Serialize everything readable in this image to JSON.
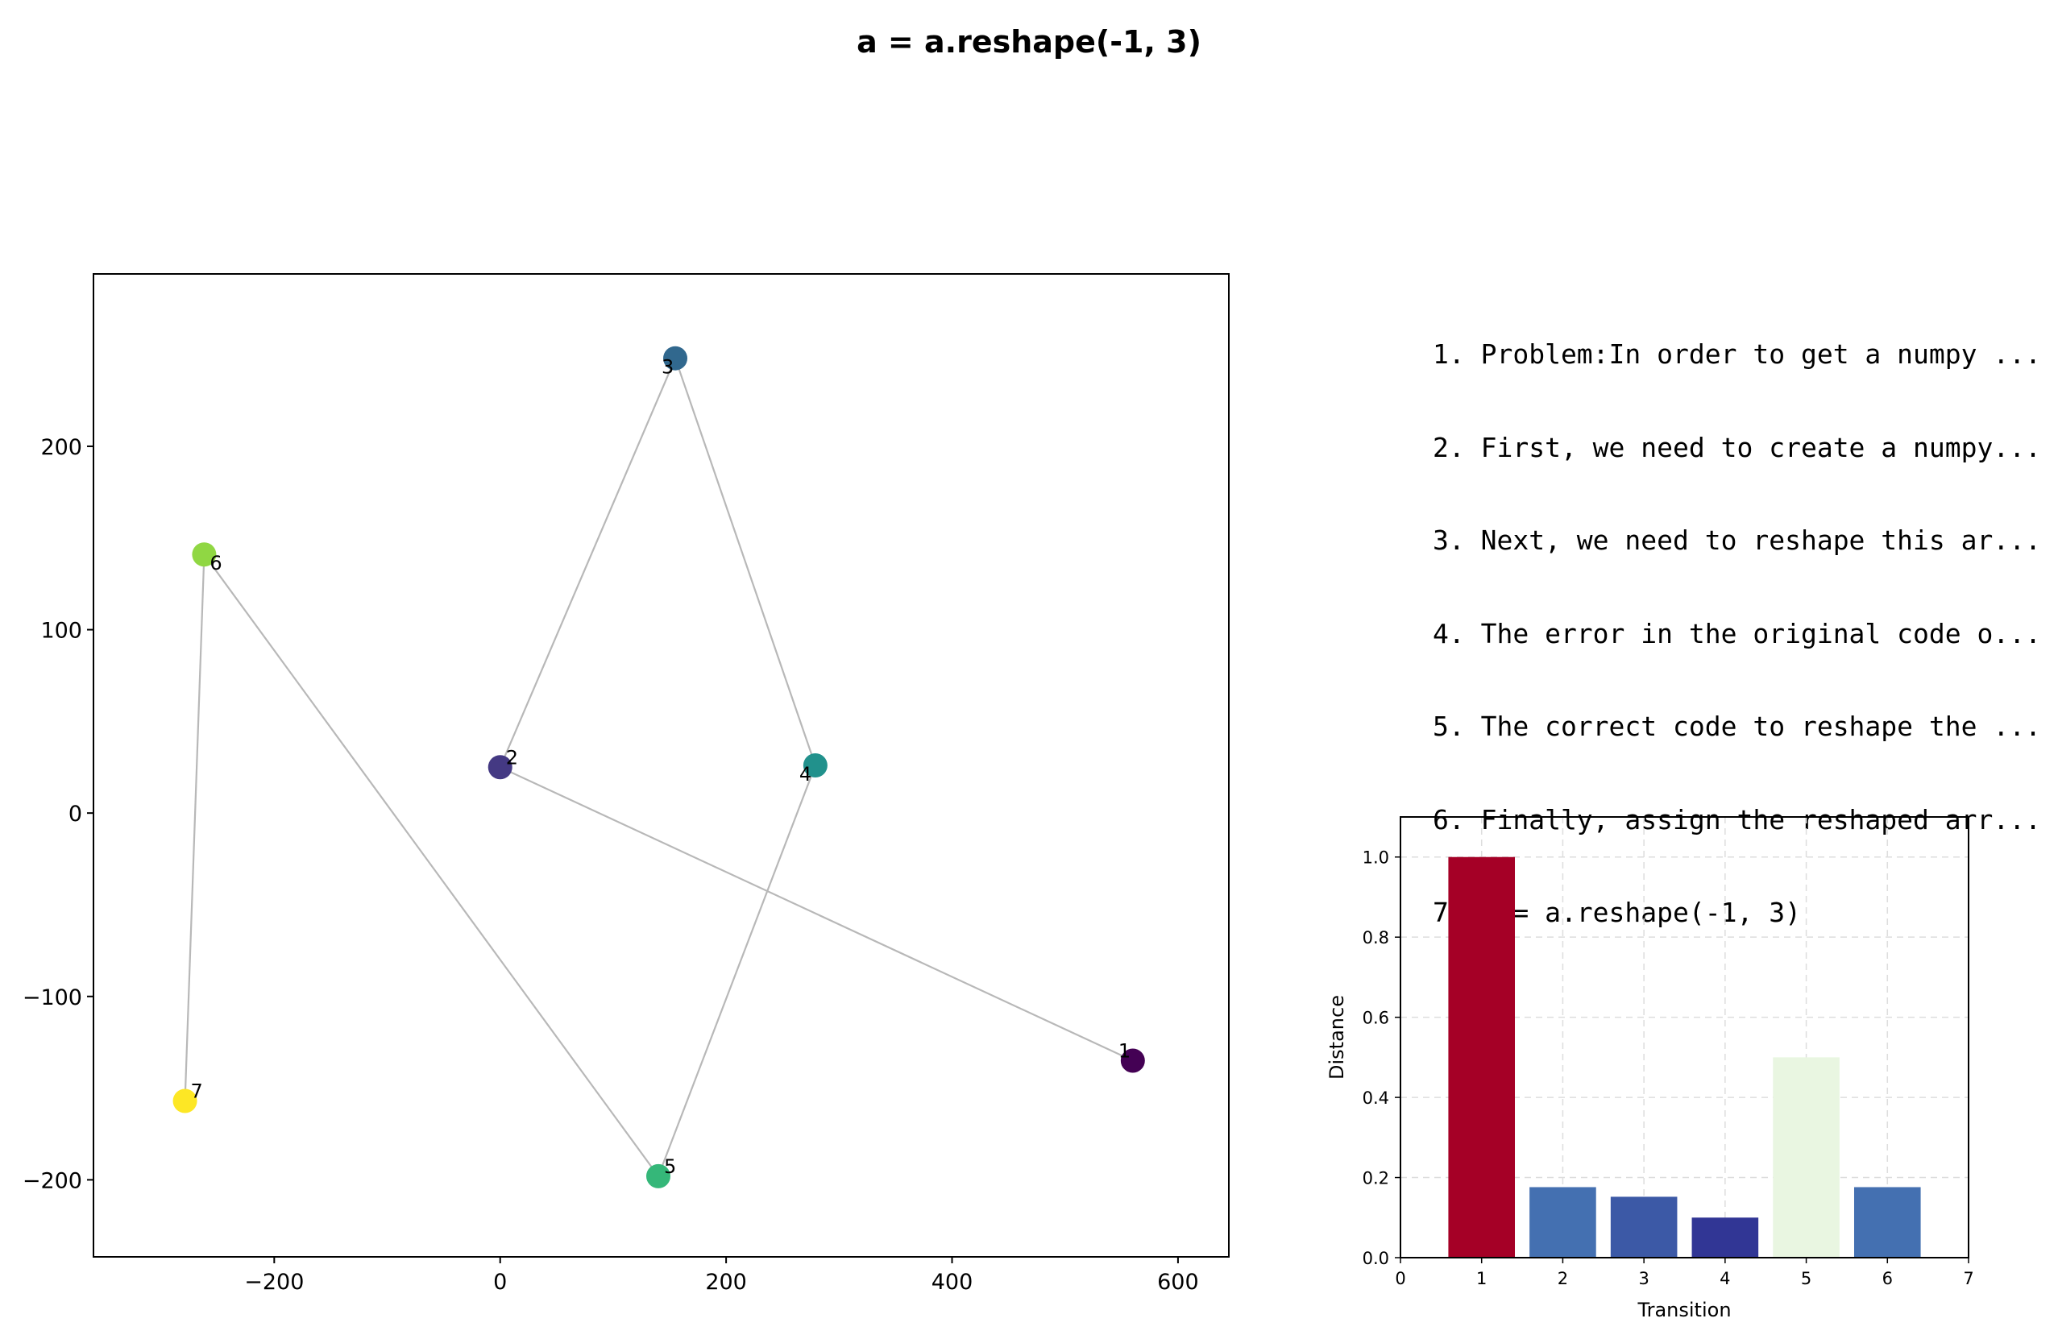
{
  "title": "a = a.reshape(-1, 3)",
  "steps": [
    "1. Problem:In order to get a numpy ...",
    "2. First, we need to create a numpy...",
    "3. Next, we need to reshape this ar...",
    "4. The error in the original code o...",
    "5. The correct code to reshape the ...",
    "6. Finally, assign the reshaped arr...",
    "7. a = a.reshape(-1, 3)"
  ],
  "chart_data": [
    {
      "type": "scatter",
      "title": "",
      "xlabel": "",
      "ylabel": "",
      "xlim": [
        -360,
        645
      ],
      "ylim": [
        -242,
        294
      ],
      "xticks": [
        -200,
        0,
        200,
        400,
        600
      ],
      "xtick_labels": [
        "−200",
        "0",
        "200",
        "400",
        "600"
      ],
      "yticks": [
        -200,
        -100,
        0,
        100,
        200
      ],
      "ytick_labels": [
        "−200",
        "−100",
        "0",
        "100",
        "200"
      ],
      "grid": false,
      "points": [
        {
          "label": "1",
          "x": 560,
          "y": -135,
          "color": "#440154"
        },
        {
          "label": "2",
          "x": 0,
          "y": 25,
          "color": "#443983"
        },
        {
          "label": "3",
          "x": 155,
          "y": 248,
          "color": "#31688e"
        },
        {
          "label": "4",
          "x": 279,
          "y": 26,
          "color": "#21918c"
        },
        {
          "label": "5",
          "x": 140,
          "y": -198,
          "color": "#35b779"
        },
        {
          "label": "6",
          "x": -262,
          "y": 141,
          "color": "#90d743"
        },
        {
          "label": "7",
          "x": -279,
          "y": -157,
          "color": "#fde725"
        }
      ],
      "connections": [
        [
          1,
          2
        ],
        [
          2,
          3
        ],
        [
          3,
          4
        ],
        [
          4,
          5
        ],
        [
          5,
          6
        ],
        [
          6,
          7
        ]
      ],
      "line_color": "#b8b8b8"
    },
    {
      "type": "bar",
      "title": "",
      "xlabel": "Transition",
      "ylabel": "Distance",
      "categories": [
        "1",
        "2",
        "3",
        "4",
        "5",
        "6"
      ],
      "values": [
        1.0,
        0.176,
        0.152,
        0.1,
        0.5,
        0.176
      ],
      "colors": [
        "#a50026",
        "#4470b1",
        "#3c59a6",
        "#313695",
        "#e9f6e1",
        "#4470b1"
      ],
      "xlim": [
        0,
        7
      ],
      "ylim": [
        0,
        1.1
      ],
      "xticks": [
        "0",
        "1",
        "2",
        "3",
        "4",
        "5",
        "6",
        "7"
      ],
      "yticks": [
        "0.0",
        "0.2",
        "0.4",
        "0.6",
        "0.8",
        "1.0"
      ],
      "grid": true
    }
  ]
}
